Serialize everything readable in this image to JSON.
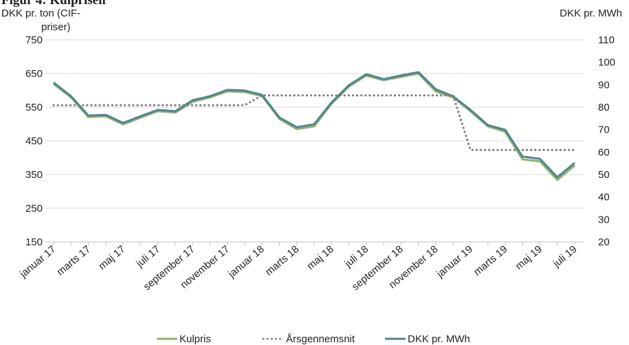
{
  "chart_data": {
    "type": "line",
    "title": "Figur 4: Kulprisen",
    "y_label": [
      "DKK pr. ton (CIF-",
      "priser)"
    ],
    "y2_label": "DKK pr. MWh",
    "categories": [
      "januar 17",
      null,
      "marts 17",
      null,
      "maj 17",
      null,
      "juli 17",
      null,
      "september 17",
      null,
      "november 17",
      null,
      "januar 18",
      null,
      "marts 18",
      null,
      "maj 18",
      null,
      "juli 18",
      null,
      "september 18",
      null,
      "november 18",
      null,
      "januar 19",
      null,
      "marts 19",
      null,
      "maj 19",
      null,
      "juli 19"
    ],
    "series": [
      {
        "name": "Kulpris",
        "color": "#8db36b",
        "style": "solid",
        "values": [
          619,
          579,
          521,
          523,
          499,
          519,
          538,
          534,
          566,
          579,
          597,
          595,
          583,
          515,
          485,
          493,
          560,
          611,
          644,
          630,
          640,
          650,
          597,
          579,
          538,
          493,
          477,
          395,
          389,
          334,
          377
        ]
      },
      {
        "name": "Årsgennemsnit",
        "color": "#7f7f7f",
        "style": "dotted",
        "values": [
          556,
          556,
          556,
          556,
          556,
          556,
          556,
          556,
          556,
          556,
          556,
          556,
          585,
          585,
          585,
          585,
          585,
          585,
          585,
          585,
          585,
          585,
          585,
          585,
          423,
          423,
          423,
          423,
          423,
          423,
          423
        ]
      },
      {
        "name": "DKK pr. MWh",
        "color": "#4e8493",
        "style": "solid",
        "axis": "y2",
        "values": [
          91.0,
          84.9,
          76.3,
          76.6,
          73.0,
          76.0,
          78.8,
          78.2,
          83.1,
          84.9,
          87.7,
          87.4,
          85.5,
          75.4,
          71.1,
          72.4,
          82.1,
          89.8,
          94.7,
          92.5,
          94.1,
          95.6,
          88.0,
          84.9,
          78.8,
          72.0,
          69.9,
          58.0,
          57.0,
          48.8,
          55.2
        ]
      }
    ],
    "ylim": [
      150,
      750
    ],
    "yticks": [
      150,
      250,
      350,
      450,
      550,
      650,
      750
    ],
    "y2lim": [
      20,
      110
    ],
    "y2ticks": [
      20,
      30,
      40,
      50,
      60,
      70,
      80,
      90,
      100,
      110
    ],
    "grid": true,
    "legend": "bottom"
  }
}
